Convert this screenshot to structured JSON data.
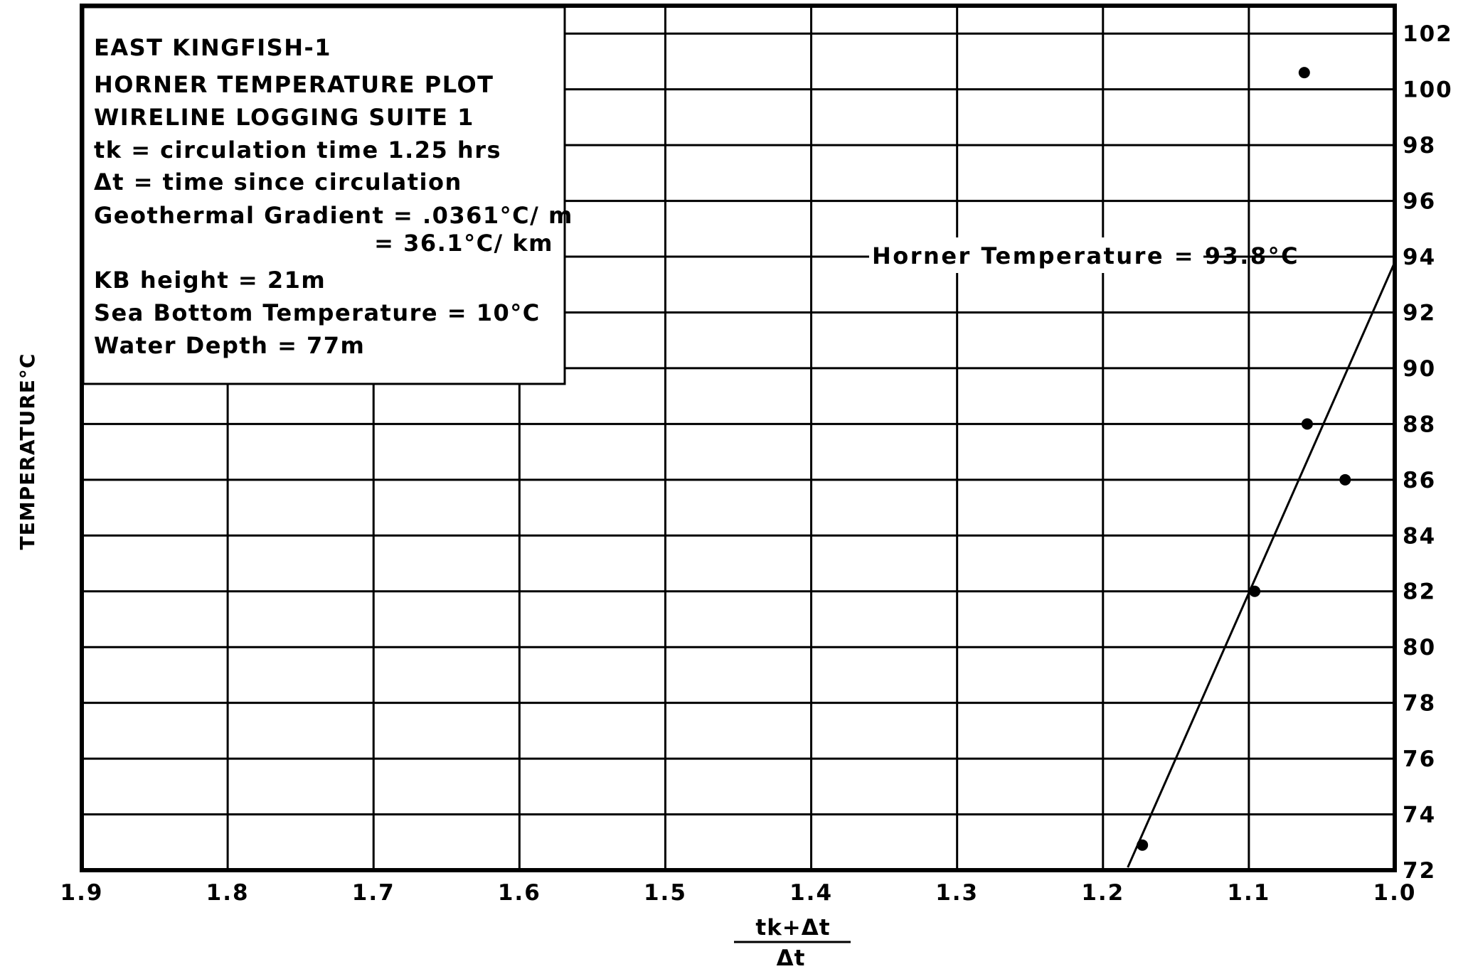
{
  "chart_data": {
    "type": "scatter",
    "title": "EAST KINGFISH-1",
    "info_box": [
      "EAST KINGFISH-1",
      "HORNER TEMPERATURE PLOT",
      "WIRELINE LOGGING SUITE 1",
      "tk = circulation time  1.25 hrs",
      "Δt = time since circulation",
      "Geothermal Gradient = .0361°C/ m",
      "= 36.1°C/ km",
      "KB height = 21m",
      "Sea Bottom Temperature = 10°C",
      "Water Depth = 77m"
    ],
    "ylabel": "TEMPERATURE°C",
    "xlabel_numerator": "tk+Δt",
    "xlabel_denominator": "Δt",
    "annotation": "Horner Temperature = 93.8°C",
    "xlim": [
      1.9,
      1.0
    ],
    "ylim": [
      72,
      103
    ],
    "x_ticks": [
      "1.9",
      "1.8",
      "1.7",
      "1.6",
      "1.5",
      "1.4",
      "1.3",
      "1.2",
      "1.1",
      "1.0"
    ],
    "y_ticks": [
      "72",
      "74",
      "76",
      "78",
      "80",
      "82",
      "84",
      "86",
      "88",
      "90",
      "92",
      "94",
      "96",
      "98",
      "100",
      "102"
    ],
    "grid": true,
    "points": [
      {
        "x": 1.062,
        "y": 100.6
      },
      {
        "x": 1.06,
        "y": 88.0
      },
      {
        "x": 1.034,
        "y": 86.0
      },
      {
        "x": 1.096,
        "y": 82.0
      },
      {
        "x": 1.173,
        "y": 72.9
      }
    ],
    "fit_line": {
      "x": [
        1.183,
        1.0
      ],
      "y": [
        72.1,
        93.8
      ]
    }
  }
}
